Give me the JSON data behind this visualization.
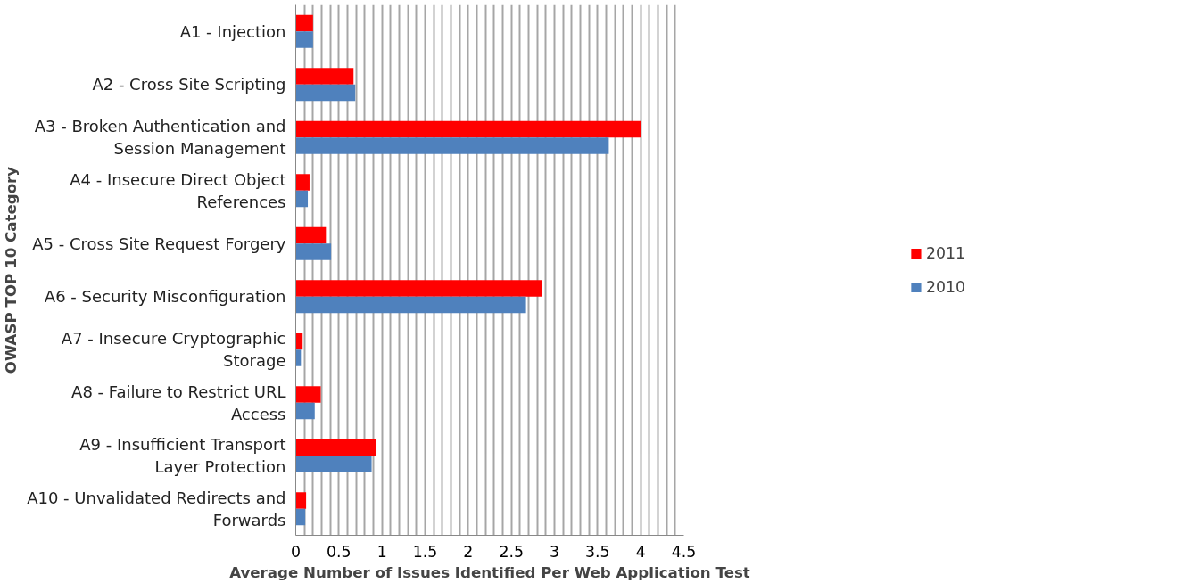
{
  "chart_data": {
    "type": "bar",
    "orientation": "horizontal",
    "xlabel": "Average Number of Issues Identified Per Web Application Test",
    "ylabel": "OWASP TOP 10 Category",
    "categories": [
      "A1 - Injection",
      "A2 - Cross Site Scripting",
      "A3 - Broken Authentication and Session Management",
      "A4 - Insecure Direct Object References",
      "A5 - Cross Site Request Forgery",
      "A6 - Security Misconfiguration",
      "A7 - Insecure Cryptographic Storage",
      "A8 - Failure to Restrict URL Access",
      "A9 - Insufficient Transport Layer Protection",
      "A10 - Unvalidated Redirects and Forwards"
    ],
    "series": [
      {
        "name": "2011",
        "color": "#ff0000",
        "values": [
          0.2,
          0.67,
          4.0,
          0.16,
          0.35,
          2.85,
          0.08,
          0.29,
          0.93,
          0.12
        ]
      },
      {
        "name": "2010",
        "color": "#4f81bd",
        "values": [
          0.2,
          0.69,
          3.63,
          0.14,
          0.41,
          2.67,
          0.06,
          0.22,
          0.88,
          0.11
        ]
      }
    ],
    "xlim": [
      0,
      4.5
    ],
    "xticks": [
      0,
      {
        "value": 0.1,
        "label": null
      },
      {
        "value": 0.2,
        "label": null
      },
      {
        "value": 0.3,
        "label": null
      },
      {
        "value": 0.4,
        "label": null
      },
      0.5,
      {
        "value": 0.6,
        "label": null
      },
      {
        "value": 0.7,
        "label": null
      },
      {
        "value": 0.8,
        "label": null
      },
      {
        "value": 0.9,
        "label": null
      },
      1,
      {
        "value": 1.1,
        "label": null
      },
      {
        "value": 1.2,
        "label": null
      },
      {
        "value": 1.3,
        "label": null
      },
      {
        "value": 1.4,
        "label": null
      },
      1.5,
      {
        "value": 1.6,
        "label": null
      },
      {
        "value": 1.7,
        "label": null
      },
      {
        "value": 1.8,
        "label": null
      },
      {
        "value": 1.9,
        "label": null
      },
      2,
      {
        "value": 2.1,
        "label": null
      },
      {
        "value": 2.2,
        "label": null
      },
      {
        "value": 2.3,
        "label": null
      },
      {
        "value": 2.4,
        "label": null
      },
      2.5,
      {
        "value": 2.6,
        "label": null
      },
      {
        "value": 2.7,
        "label": null
      },
      {
        "value": 2.8,
        "label": null
      },
      {
        "value": 2.9,
        "label": null
      },
      3,
      {
        "value": 3.1,
        "label": null
      },
      {
        "value": 3.2,
        "label": null
      },
      {
        "value": 3.3,
        "label": null
      },
      {
        "value": 3.4,
        "label": null
      },
      3.5,
      {
        "value": 3.6,
        "label": null
      },
      {
        "value": 3.7,
        "label": null
      },
      {
        "value": 3.8,
        "label": null
      },
      {
        "value": 3.9,
        "label": null
      },
      4,
      {
        "value": 4.1,
        "label": null
      },
      {
        "value": 4.2,
        "label": null
      },
      {
        "value": 4.3,
        "label": null
      },
      {
        "value": 4.4,
        "label": null
      },
      4.5
    ],
    "grid": "x",
    "legend": "right"
  }
}
